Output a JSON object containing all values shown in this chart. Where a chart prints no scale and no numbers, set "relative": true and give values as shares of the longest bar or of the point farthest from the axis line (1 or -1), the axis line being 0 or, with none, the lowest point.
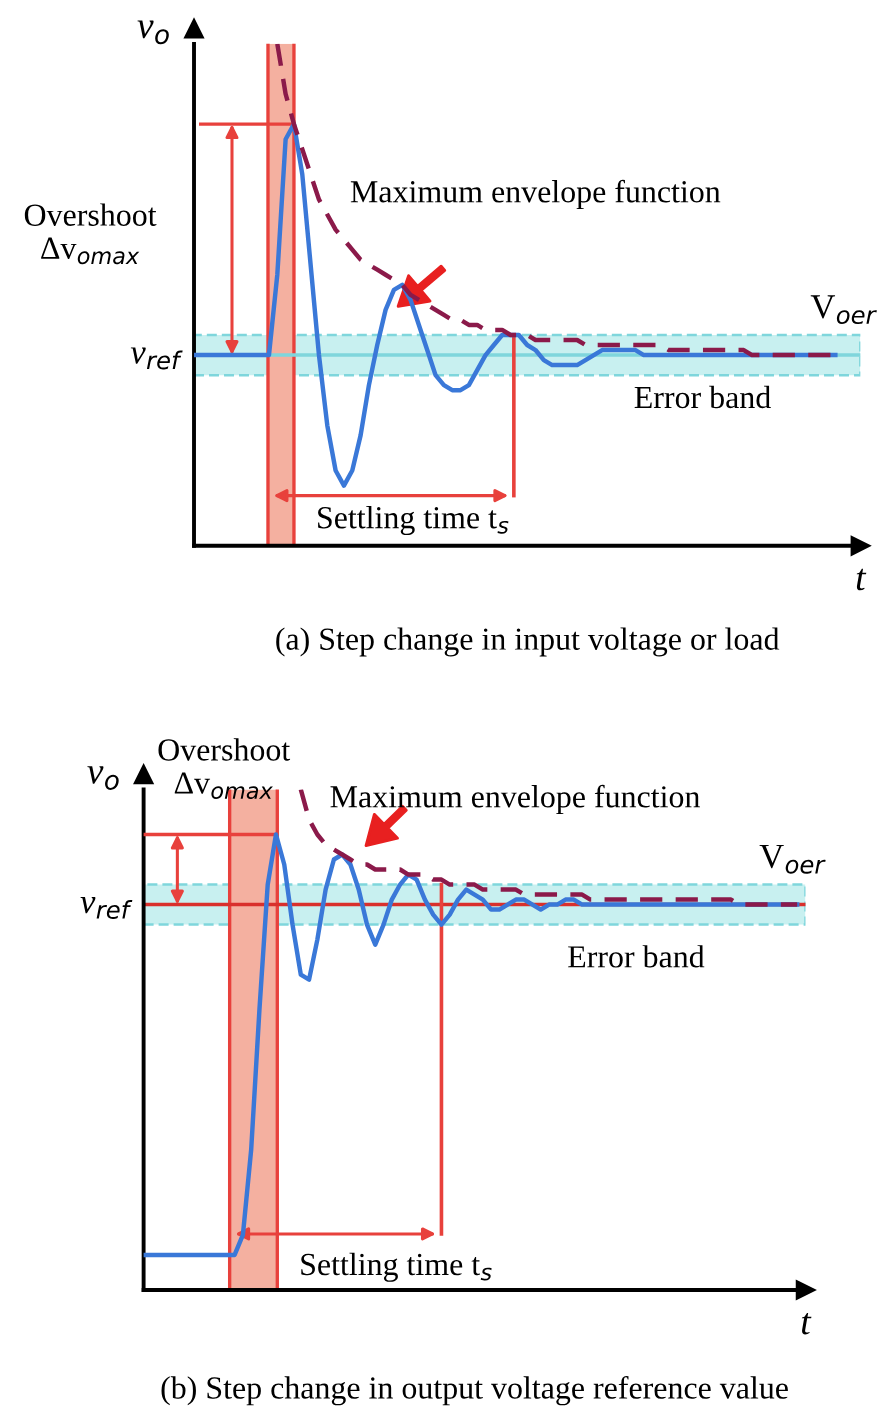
{
  "chart_data": [
    {
      "type": "line",
      "title": "(a) Step change in input voltage or load",
      "xlabel": "t",
      "ylabel": "v$_{o}$",
      "relative": true,
      "categories": [
        null,
        null,
        null,
        null,
        null,
        null,
        null,
        null,
        null,
        null,
        null,
        null,
        null,
        null,
        null,
        null,
        null,
        null,
        null,
        null,
        null,
        null,
        null,
        null,
        null,
        null,
        null,
        null,
        null,
        null,
        null,
        null,
        null,
        null,
        null,
        null,
        null,
        null,
        null,
        null,
        null,
        null,
        null,
        null,
        null,
        null,
        null,
        null,
        null,
        null,
        null,
        null,
        null,
        null,
        null,
        null,
        null,
        null,
        null,
        null,
        null,
        null,
        null,
        null,
        null,
        null,
        null,
        null,
        null,
        null,
        null,
        null,
        null,
        null,
        null,
        null,
        null,
        null,
        null,
        null,
        null
      ],
      "series": [
        {
          "color": "#3a78d8",
          "values": [
            0.38,
            0.38,
            0.38,
            0.38,
            0.38,
            0.38,
            0.38,
            0.38,
            0.38,
            0.38,
            0.54,
            0.81,
            0.84,
            0.74,
            0.56,
            0.38,
            0.24,
            0.15,
            0.12,
            0.15,
            0.22,
            0.32,
            0.4,
            0.47,
            0.51,
            0.52,
            0.49,
            0.44,
            0.39,
            0.34,
            0.32,
            0.31,
            0.31,
            0.32,
            0.35,
            0.38,
            0.4,
            0.42,
            0.42,
            0.42,
            0.4,
            0.39,
            0.37,
            0.36,
            0.36,
            0.36,
            0.36,
            0.37,
            0.38,
            0.39,
            0.39,
            0.39,
            0.39,
            0.39,
            0.38,
            0.38,
            0.38,
            0.38,
            0.38,
            0.38,
            0.38,
            0.38,
            0.38,
            0.38,
            0.38,
            0.38,
            0.38,
            0.38,
            0.38,
            0.38,
            0.38,
            0.38,
            0.38,
            0.38,
            0.38,
            0.38,
            0.38,
            0.38,
            null,
            null,
            null
          ]
        },
        {
          "color": "#8b1a4a",
          "line_style": "dashed",
          "values": [
            null,
            null,
            null,
            null,
            null,
            null,
            null,
            null,
            null,
            null,
            1,
            0.9,
            0.84,
            0.79,
            0.74,
            0.69,
            0.66,
            0.63,
            0.61,
            0.59,
            0.57,
            0.56,
            0.55,
            0.54,
            0.53,
            0.52,
            0.5,
            0.49,
            0.48,
            0.47,
            0.46,
            0.45,
            0.45,
            0.44,
            0.44,
            0.43,
            0.43,
            0.43,
            0.42,
            0.42,
            0.42,
            0.41,
            0.41,
            0.41,
            0.41,
            0.41,
            0.41,
            0.4,
            0.4,
            0.4,
            0.4,
            0.4,
            0.4,
            0.4,
            0.4,
            0.4,
            0.4,
            0.39,
            0.39,
            0.39,
            0.39,
            0.39,
            0.39,
            0.39,
            0.39,
            0.39,
            0.39,
            0.38,
            0.38,
            0.38,
            0.38,
            0.38,
            0.38,
            0.38,
            0.38,
            0.38,
            0.38,
            0.38,
            null,
            null,
            null
          ]
        }
      ],
      "ref_lines": [
        {
          "axis": "y",
          "value": 0.38,
          "label": "v$_{ref}$",
          "color": "#7fd6dc"
        }
      ],
      "bands": [
        {
          "axis": "y",
          "from": 0.34,
          "to": 0.42,
          "label": "Error band",
          "color": "#c8f0f0"
        }
      ],
      "annotations": [
        "Overshoot\nΔv$_{omax}$",
        "Maximum envelope function",
        "V$_{oer}$",
        "Settling time t$_{s}$"
      ]
    },
    {
      "type": "line",
      "title": "(b) Step change in output voltage reference value",
      "xlabel": "t",
      "ylabel": "v$_{o}$",
      "relative": true,
      "categories": [
        null,
        null,
        null,
        null,
        null,
        null,
        null,
        null,
        null,
        null,
        null,
        null,
        null,
        null,
        null,
        null,
        null,
        null,
        null,
        null,
        null,
        null,
        null,
        null,
        null,
        null,
        null,
        null,
        null,
        null,
        null,
        null,
        null,
        null,
        null,
        null,
        null,
        null,
        null,
        null,
        null,
        null,
        null,
        null,
        null,
        null,
        null,
        null,
        null,
        null,
        null,
        null,
        null,
        null,
        null,
        null,
        null,
        null,
        null,
        null,
        null,
        null,
        null,
        null,
        null,
        null,
        null,
        null,
        null,
        null,
        null,
        null,
        null,
        null,
        null,
        null,
        null,
        null,
        null,
        null,
        null
      ],
      "series": [
        {
          "color": "#3a78d8",
          "values": [
            0.07,
            0.07,
            0.07,
            0.07,
            0.07,
            0.07,
            0.07,
            0.07,
            0.07,
            0.07,
            0.07,
            0.07,
            0.11,
            0.28,
            0.56,
            0.81,
            0.91,
            0.85,
            0.73,
            0.63,
            0.62,
            0.7,
            0.8,
            0.86,
            0.87,
            0.85,
            0.8,
            0.73,
            0.69,
            0.73,
            0.78,
            0.81,
            0.83,
            0.82,
            0.78,
            0.75,
            0.73,
            0.75,
            0.78,
            0.8,
            0.79,
            0.78,
            0.76,
            0.76,
            0.77,
            0.78,
            0.78,
            0.77,
            0.76,
            0.77,
            0.77,
            0.78,
            0.78,
            0.77,
            0.77,
            0.77,
            0.77,
            0.77,
            0.77,
            0.77,
            0.77,
            0.77,
            0.77,
            0.77,
            0.77,
            0.77,
            0.77,
            0.77,
            0.77,
            0.77,
            0.77,
            0.77,
            0.77,
            0.77,
            0.77,
            0.77,
            0.77,
            0.77,
            0.77,
            0.77,
            null
          ]
        },
        {
          "color": "#8b1a4a",
          "line_style": "dashed",
          "values": [
            null,
            null,
            null,
            null,
            null,
            null,
            null,
            null,
            null,
            null,
            null,
            null,
            null,
            null,
            null,
            null,
            null,
            null,
            null,
            1,
            0.94,
            0.91,
            0.89,
            0.88,
            0.87,
            0.86,
            0.85,
            0.85,
            0.84,
            0.84,
            0.84,
            0.84,
            0.83,
            0.83,
            0.83,
            0.82,
            0.82,
            0.81,
            0.81,
            0.81,
            0.81,
            0.8,
            0.8,
            0.8,
            0.8,
            0.8,
            0.79,
            0.79,
            0.79,
            0.79,
            0.79,
            0.79,
            0.79,
            0.79,
            0.78,
            0.78,
            0.78,
            0.78,
            0.78,
            0.78,
            0.78,
            0.78,
            0.78,
            0.78,
            0.78,
            0.78,
            0.78,
            0.78,
            0.78,
            0.78,
            0.78,
            0.78,
            0.77,
            0.77,
            0.77,
            0.77,
            0.77,
            0.77,
            0.77,
            0.77,
            null
          ]
        }
      ],
      "ref_lines": [
        {
          "axis": "y",
          "value": 0.77,
          "label": "v$_{ref}$",
          "color": "#d9302c"
        }
      ],
      "bands": [
        {
          "axis": "y",
          "from": 0.73,
          "to": 0.81,
          "label": "Error band",
          "color": "#c8f0f0"
        }
      ],
      "annotations": [
        "Overshoot\nΔv$_{omax}$",
        "Maximum envelope function",
        "V$_{oer}$",
        "Settling time t$_{s}$"
      ]
    }
  ]
}
